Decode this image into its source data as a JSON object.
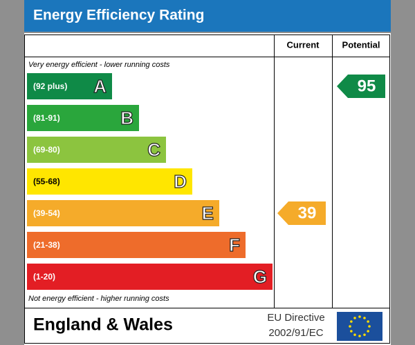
{
  "header": {
    "title": "Energy Efficiency Rating"
  },
  "columns": {
    "current": "Current",
    "potential": "Potential"
  },
  "top_note": "Very energy efficient - lower running costs",
  "bottom_note": "Not energy efficient - higher running costs",
  "bands": [
    {
      "range": "(92 plus)",
      "letter": "A",
      "color": "#0f8a47"
    },
    {
      "range": "(81-91)",
      "letter": "B",
      "color": "#2aa63c"
    },
    {
      "range": "(69-80)",
      "letter": "C",
      "color": "#8cc43f"
    },
    {
      "range": "(55-68)",
      "letter": "D",
      "color": "#ffe600"
    },
    {
      "range": "(39-54)",
      "letter": "E",
      "color": "#f5ab2a"
    },
    {
      "range": "(21-38)",
      "letter": "F",
      "color": "#ee6c2b"
    },
    {
      "range": "(1-20)",
      "letter": "G",
      "color": "#e31e24"
    }
  ],
  "current": 39,
  "potential": 95,
  "footer": {
    "region": "England & Wales",
    "directive": [
      "EU Directive",
      "2002/91/EC"
    ]
  }
}
